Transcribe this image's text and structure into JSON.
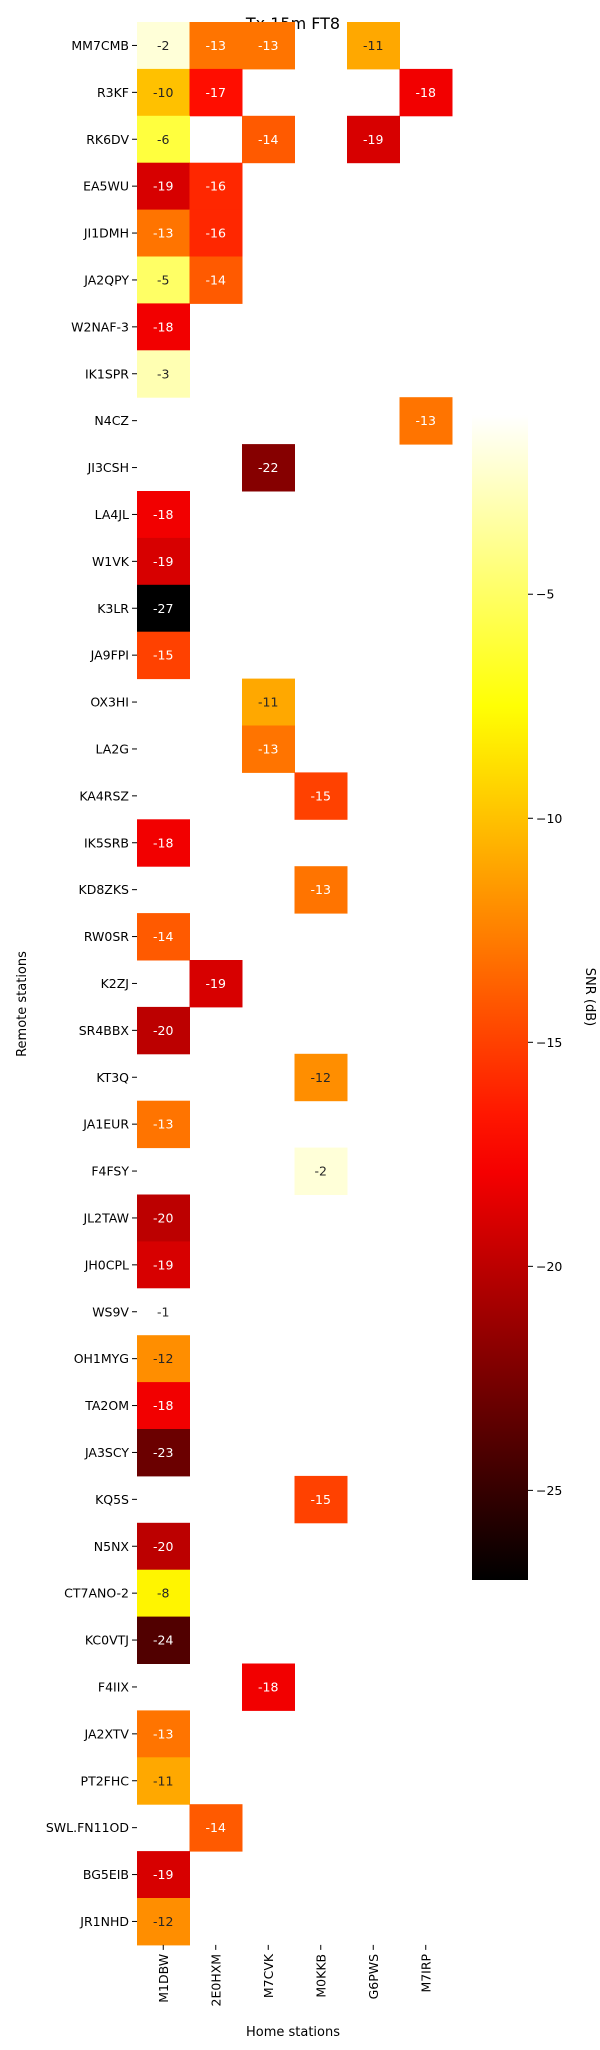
{
  "chart_data": {
    "type": "heatmap",
    "title": "Tx 15m FT8",
    "xlabel": "Home stations",
    "ylabel": "Remote stations",
    "colorbar_label": "SNR (dB)",
    "colormap": "hot",
    "vmin": -27,
    "vmax": -1,
    "colorbar_ticks": [
      -5,
      -10,
      -15,
      -20,
      -25
    ],
    "x_categories": [
      "M1DBW",
      "2E0HXM",
      "M7CVK",
      "M0KKB",
      "G6PWS",
      "M7IRP"
    ],
    "y_categories": [
      "MM7CMB",
      "R3KF",
      "RK6DV",
      "EA5WU",
      "JI1DMH",
      "JA2QPY",
      "W2NAF-3",
      "IK1SPR",
      "N4CZ",
      "JI3CSH",
      "LA4JL",
      "W1VK",
      "K3LR",
      "JA9FPI",
      "OX3HI",
      "LA2G",
      "KA4RSZ",
      "IK5SRB",
      "KD8ZKS",
      "RW0SR",
      "K2ZJ",
      "SR4BBX",
      "KT3Q",
      "JA1EUR",
      "F4FSY",
      "JL2TAW",
      "JH0CPL",
      "WS9V",
      "OH1MYG",
      "TA2OM",
      "JA3SCY",
      "KQ5S",
      "N5NX",
      "CT7ANO-2",
      "KC0VTJ",
      "F4IIX",
      "JA2XTV",
      "PT2FHC",
      "SWL.FN11OD",
      "BG5EIB",
      "JR1NHD"
    ],
    "values": [
      [
        -2,
        -13,
        -13,
        null,
        -11,
        null
      ],
      [
        -10,
        -17,
        null,
        null,
        null,
        -18
      ],
      [
        -6,
        null,
        -14,
        null,
        -19,
        null
      ],
      [
        -19,
        -16,
        null,
        null,
        null,
        null
      ],
      [
        -13,
        -16,
        null,
        null,
        null,
        null
      ],
      [
        -5,
        -14,
        null,
        null,
        null,
        null
      ],
      [
        -18,
        null,
        null,
        null,
        null,
        null
      ],
      [
        -3,
        null,
        null,
        null,
        null,
        null
      ],
      [
        null,
        null,
        null,
        null,
        null,
        -13
      ],
      [
        null,
        null,
        -22,
        null,
        null,
        null
      ],
      [
        -18,
        null,
        null,
        null,
        null,
        null
      ],
      [
        -19,
        null,
        null,
        null,
        null,
        null
      ],
      [
        -27,
        null,
        null,
        null,
        null,
        null
      ],
      [
        -15,
        null,
        null,
        null,
        null,
        null
      ],
      [
        null,
        null,
        -11,
        null,
        null,
        null
      ],
      [
        null,
        null,
        -13,
        null,
        null,
        null
      ],
      [
        null,
        null,
        null,
        -15,
        null,
        null
      ],
      [
        -18,
        null,
        null,
        null,
        null,
        null
      ],
      [
        null,
        null,
        null,
        -13,
        null,
        null
      ],
      [
        -14,
        null,
        null,
        null,
        null,
        null
      ],
      [
        null,
        -19,
        null,
        null,
        null,
        null
      ],
      [
        -20,
        null,
        null,
        null,
        null,
        null
      ],
      [
        null,
        null,
        null,
        -12,
        null,
        null
      ],
      [
        -13,
        null,
        null,
        null,
        null,
        null
      ],
      [
        null,
        null,
        null,
        -2,
        null,
        null
      ],
      [
        -20,
        null,
        null,
        null,
        null,
        null
      ],
      [
        -19,
        null,
        null,
        null,
        null,
        null
      ],
      [
        -1,
        null,
        null,
        null,
        null,
        null
      ],
      [
        -12,
        null,
        null,
        null,
        null,
        null
      ],
      [
        -18,
        null,
        null,
        null,
        null,
        null
      ],
      [
        -23,
        null,
        null,
        null,
        null,
        null
      ],
      [
        null,
        null,
        null,
        -15,
        null,
        null
      ],
      [
        -20,
        null,
        null,
        null,
        null,
        null
      ],
      [
        -8,
        null,
        null,
        null,
        null,
        null
      ],
      [
        -24,
        null,
        null,
        null,
        null,
        null
      ],
      [
        null,
        null,
        -18,
        null,
        null,
        null
      ],
      [
        -13,
        null,
        null,
        null,
        null,
        null
      ],
      [
        -11,
        null,
        null,
        null,
        null,
        null
      ],
      [
        null,
        -14,
        null,
        null,
        null,
        null
      ],
      [
        -19,
        null,
        null,
        null,
        null,
        null
      ],
      [
        -12,
        null,
        null,
        null,
        null,
        null
      ]
    ]
  }
}
